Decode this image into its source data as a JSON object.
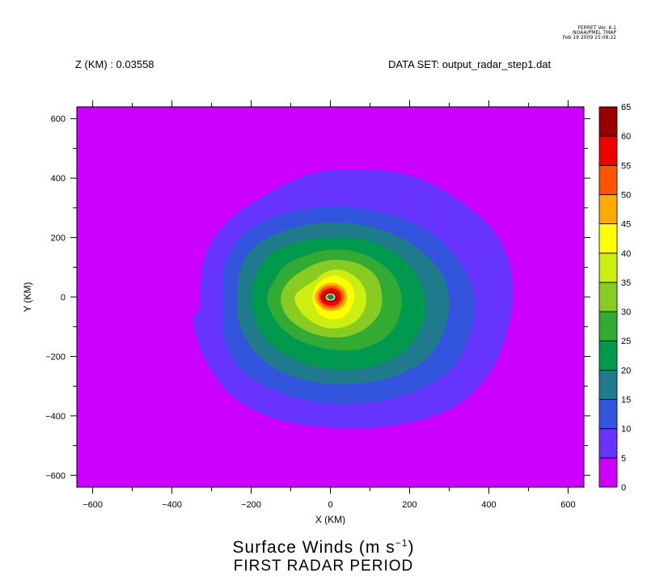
{
  "header": {
    "ferret_version": "FERRET Ver. 6.1",
    "ferret_org": "NOAA/PMEL TMAP",
    "ferret_date": "Feb 19 2009 15:08:22",
    "z_label": "Z (KM) : 0.03558",
    "dataset_label": "DATA SET: output_radar_step1.dat"
  },
  "chart_data": {
    "type": "contour",
    "title": "Surface Winds (m s",
    "title_unit_exp": "−1",
    "title_close": ")",
    "subtitle": "FIRST RADAR PERIOD",
    "xlabel": "X (KM)",
    "ylabel": "Y (KM)",
    "xlim": [
      -640,
      640
    ],
    "ylim": [
      -640,
      640
    ],
    "x_ticks": [
      -600,
      -400,
      -200,
      0,
      200,
      400,
      600
    ],
    "x_tick_labels": [
      "−600",
      "−400",
      "−200",
      "0",
      "200",
      "400",
      "600"
    ],
    "y_ticks": [
      -600,
      -400,
      -200,
      0,
      200,
      400,
      600
    ],
    "y_tick_labels": [
      "−600",
      "−400",
      "−200",
      "0",
      "200",
      "400",
      "600"
    ],
    "colorbar": {
      "levels": [
        0,
        5,
        10,
        15,
        20,
        25,
        30,
        35,
        40,
        45,
        50,
        55,
        60,
        65
      ],
      "level_labels": [
        "0",
        "5",
        "10",
        "15",
        "20",
        "25",
        "30",
        "35",
        "40",
        "45",
        "50",
        "55",
        "60",
        "65"
      ],
      "colors": [
        "#cc00ff",
        "#6633ff",
        "#3355dd",
        "#1f7a8c",
        "#00994d",
        "#33aa33",
        "#88cc22",
        "#ccee11",
        "#ffff00",
        "#ffaa00",
        "#ff5500",
        "#ee0000",
        "#990000"
      ]
    },
    "contours": [
      {
        "level": 5,
        "color": "#6633ff",
        "points": [
          [
            -330,
            -30
          ],
          [
            -320,
            120
          ],
          [
            -270,
            240
          ],
          [
            -180,
            330
          ],
          [
            -60,
            410
          ],
          [
            60,
            430
          ],
          [
            200,
            410
          ],
          [
            320,
            330
          ],
          [
            420,
            210
          ],
          [
            460,
            60
          ],
          [
            450,
            -100
          ],
          [
            400,
            -260
          ],
          [
            300,
            -380
          ],
          [
            150,
            -435
          ],
          [
            0,
            -440
          ],
          [
            -140,
            -410
          ],
          [
            -250,
            -330
          ],
          [
            -320,
            -200
          ],
          [
            -345,
            -80
          ]
        ]
      },
      {
        "level": 10,
        "color": "#3355dd",
        "points": [
          [
            -270,
            -30
          ],
          [
            -265,
            110
          ],
          [
            -220,
            210
          ],
          [
            -140,
            270
          ],
          [
            -40,
            300
          ],
          [
            60,
            300
          ],
          [
            170,
            270
          ],
          [
            270,
            200
          ],
          [
            340,
            90
          ],
          [
            365,
            -20
          ],
          [
            350,
            -140
          ],
          [
            300,
            -250
          ],
          [
            210,
            -320
          ],
          [
            100,
            -355
          ],
          [
            -20,
            -355
          ],
          [
            -130,
            -320
          ],
          [
            -220,
            -250
          ],
          [
            -265,
            -150
          ]
        ]
      },
      {
        "level": 15,
        "color": "#1f7a8c",
        "points": [
          [
            -235,
            -20
          ],
          [
            -225,
            100
          ],
          [
            -185,
            175
          ],
          [
            -110,
            225
          ],
          [
            -20,
            250
          ],
          [
            70,
            245
          ],
          [
            160,
            210
          ],
          [
            235,
            150
          ],
          [
            285,
            70
          ],
          [
            300,
            -20
          ],
          [
            285,
            -120
          ],
          [
            240,
            -210
          ],
          [
            165,
            -265
          ],
          [
            80,
            -290
          ],
          [
            -20,
            -290
          ],
          [
            -110,
            -260
          ],
          [
            -180,
            -200
          ],
          [
            -225,
            -110
          ]
        ]
      },
      {
        "level": 20,
        "color": "#00994d",
        "points": [
          [
            -200,
            -10
          ],
          [
            -185,
            80
          ],
          [
            -150,
            145
          ],
          [
            -80,
            185
          ],
          [
            0,
            200
          ],
          [
            80,
            195
          ],
          [
            150,
            160
          ],
          [
            205,
            100
          ],
          [
            235,
            20
          ],
          [
            240,
            -60
          ],
          [
            215,
            -140
          ],
          [
            170,
            -200
          ],
          [
            100,
            -235
          ],
          [
            20,
            -245
          ],
          [
            -60,
            -225
          ],
          [
            -130,
            -180
          ],
          [
            -180,
            -110
          ]
        ]
      },
      {
        "level": 25,
        "color": "#33aa33",
        "points": [
          [
            -160,
            -5
          ],
          [
            -140,
            60
          ],
          [
            -110,
            110
          ],
          [
            -50,
            145
          ],
          [
            10,
            160
          ],
          [
            70,
            150
          ],
          [
            125,
            115
          ],
          [
            165,
            60
          ],
          [
            180,
            -10
          ],
          [
            170,
            -80
          ],
          [
            140,
            -135
          ],
          [
            90,
            -170
          ],
          [
            30,
            -180
          ],
          [
            -40,
            -165
          ],
          [
            -100,
            -130
          ],
          [
            -140,
            -75
          ]
        ]
      },
      {
        "level": 30,
        "color": "#88cc22",
        "points": [
          [
            -125,
            0
          ],
          [
            -110,
            45
          ],
          [
            -75,
            85
          ],
          [
            -30,
            115
          ],
          [
            20,
            125
          ],
          [
            75,
            110
          ],
          [
            115,
            70
          ],
          [
            130,
            10
          ],
          [
            125,
            -50
          ],
          [
            95,
            -100
          ],
          [
            50,
            -130
          ],
          [
            0,
            -135
          ],
          [
            -50,
            -120
          ],
          [
            -95,
            -85
          ],
          [
            -118,
            -45
          ]
        ]
      },
      {
        "level": 35,
        "color": "#ccee11",
        "points": [
          [
            -90,
            0
          ],
          [
            -70,
            30
          ],
          [
            -40,
            55
          ],
          [
            -10,
            85
          ],
          [
            30,
            90
          ],
          [
            70,
            60
          ],
          [
            90,
            10
          ],
          [
            85,
            -45
          ],
          [
            60,
            -85
          ],
          [
            20,
            -105
          ],
          [
            -20,
            -100
          ],
          [
            -55,
            -75
          ],
          [
            -80,
            -40
          ]
        ]
      },
      {
        "level": 40,
        "color": "#ffff00",
        "points": [
          [
            -45,
            5
          ],
          [
            -35,
            40
          ],
          [
            -10,
            65
          ],
          [
            20,
            70
          ],
          [
            50,
            45
          ],
          [
            60,
            10
          ],
          [
            55,
            -30
          ],
          [
            35,
            -65
          ],
          [
            5,
            -75
          ],
          [
            -25,
            -60
          ],
          [
            -40,
            -30
          ]
        ]
      },
      {
        "level": 45,
        "color": "#ffaa00",
        "points": [
          [
            -40,
            0
          ],
          [
            -30,
            28
          ],
          [
            -10,
            45
          ],
          [
            15,
            45
          ],
          [
            35,
            28
          ],
          [
            42,
            0
          ],
          [
            35,
            -28
          ],
          [
            15,
            -45
          ],
          [
            -10,
            -45
          ],
          [
            -30,
            -28
          ]
        ]
      },
      {
        "level": 50,
        "color": "#ff5500",
        "points": [
          [
            -32,
            0
          ],
          [
            -25,
            22
          ],
          [
            -8,
            36
          ],
          [
            12,
            36
          ],
          [
            28,
            22
          ],
          [
            34,
            0
          ],
          [
            28,
            -22
          ],
          [
            12,
            -36
          ],
          [
            -8,
            -36
          ],
          [
            -25,
            -22
          ]
        ]
      },
      {
        "level": 55,
        "color": "#ee0000",
        "points": [
          [
            -26,
            0
          ],
          [
            -20,
            18
          ],
          [
            -6,
            28
          ],
          [
            10,
            28
          ],
          [
            22,
            18
          ],
          [
            27,
            0
          ],
          [
            22,
            -18
          ],
          [
            10,
            -28
          ],
          [
            -6,
            -28
          ],
          [
            -20,
            -18
          ]
        ]
      },
      {
        "level": 60,
        "color": "#990000",
        "points": [
          [
            -18,
            0
          ],
          [
            -13,
            12
          ],
          [
            -2,
            18
          ],
          [
            8,
            16
          ],
          [
            15,
            8
          ],
          [
            17,
            -4
          ],
          [
            12,
            -14
          ],
          [
            2,
            -18
          ],
          [
            -9,
            -15
          ],
          [
            -16,
            -8
          ]
        ]
      },
      {
        "level": 40,
        "color": "#ffff00",
        "points": [
          [
            -12,
            0
          ],
          [
            -9,
            8
          ],
          [
            0,
            12
          ],
          [
            9,
            9
          ],
          [
            12,
            0
          ],
          [
            9,
            -9
          ],
          [
            0,
            -12
          ],
          [
            -9,
            -9
          ]
        ]
      },
      {
        "level": 20,
        "color": "#00994d",
        "points": [
          [
            -9,
            0
          ],
          [
            -6,
            6
          ],
          [
            0,
            9
          ],
          [
            7,
            6
          ],
          [
            9,
            0
          ],
          [
            7,
            -6
          ],
          [
            0,
            -9
          ],
          [
            -6,
            -6
          ]
        ]
      },
      {
        "level": 10,
        "color": "#3355dd",
        "points": [
          [
            -5,
            0
          ],
          [
            -3,
            4
          ],
          [
            0,
            5
          ],
          [
            4,
            3
          ],
          [
            5,
            0
          ],
          [
            3,
            -4
          ],
          [
            0,
            -5
          ],
          [
            -4,
            -3
          ]
        ]
      }
    ]
  }
}
